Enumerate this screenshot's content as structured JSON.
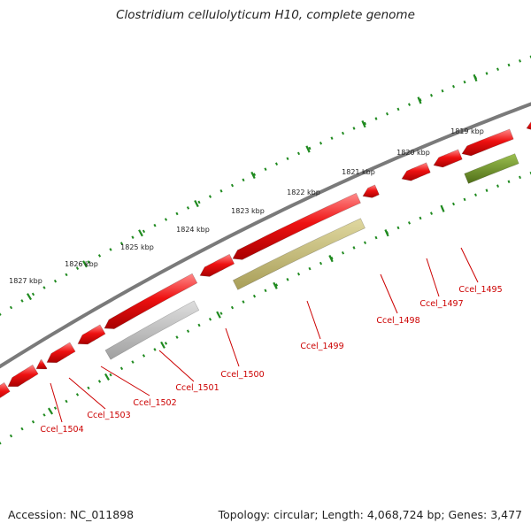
{
  "title": "Clostridium cellulolyticum H10, complete genome",
  "footer": {
    "accession": "Accession: NC_011898",
    "info": "Topology: circular; Length: 4,068,724 bp; Genes: 3,477"
  },
  "colors": {
    "backbone": "#7a7a7a",
    "ruler": "#1f8a1f",
    "gene": "#ee1111",
    "label": "#cc0000",
    "pseudogene": "#b0b0b0",
    "rna_light": "#c8c080",
    "rna_dark": "#6d8f2a"
  },
  "ruler_labels": [
    "1819 kbp",
    "1820 kbp",
    "1821 kbp",
    "1822 kbp",
    "1823 kbp",
    "1824 kbp",
    "1825 kbp",
    "1826 kbp",
    "1827 kbp"
  ],
  "gene_labels": [
    "Ccel_1495",
    "Ccel_1497",
    "Ccel_1498",
    "Ccel_1499",
    "Ccel_1500",
    "Ccel_1501",
    "Ccel_1502",
    "Ccel_1503",
    "Ccel_1504"
  ]
}
